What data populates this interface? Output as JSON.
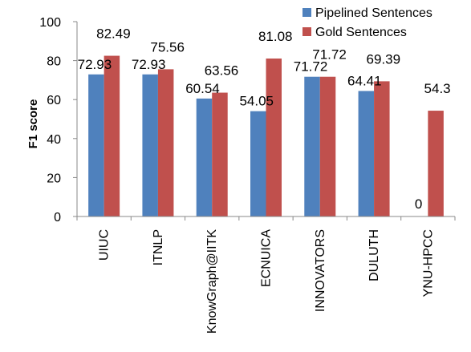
{
  "chart_data": {
    "type": "bar",
    "title": "",
    "xlabel": "",
    "ylabel": "F1 score",
    "ylim": [
      0,
      100
    ],
    "yticks": [
      0,
      20,
      40,
      60,
      80,
      100
    ],
    "grid": false,
    "legend_position": "top-right",
    "categories": [
      "UIUC",
      "ITNLP",
      "KnowGraph@IITK",
      "ECNUICA",
      "INNOVATORS",
      "DULUTH",
      "YNU-HPCC"
    ],
    "series": [
      {
        "name": "Pipelined Sentences",
        "color": "#4F81BD",
        "values": [
          72.93,
          72.93,
          60.54,
          54.05,
          71.72,
          64.41,
          0
        ],
        "labels": [
          "72.93",
          "72.93",
          "60.54",
          "54.05",
          "71.72",
          "64.41",
          "0"
        ]
      },
      {
        "name": "Gold Sentences",
        "color": "#C0504D",
        "values": [
          82.49,
          75.56,
          63.56,
          81.08,
          71.72,
          69.39,
          54.3
        ],
        "labels": [
          "82.49",
          "75.56",
          "63.56",
          "81.08",
          "71.72",
          "69.39",
          "54.3"
        ]
      }
    ]
  }
}
